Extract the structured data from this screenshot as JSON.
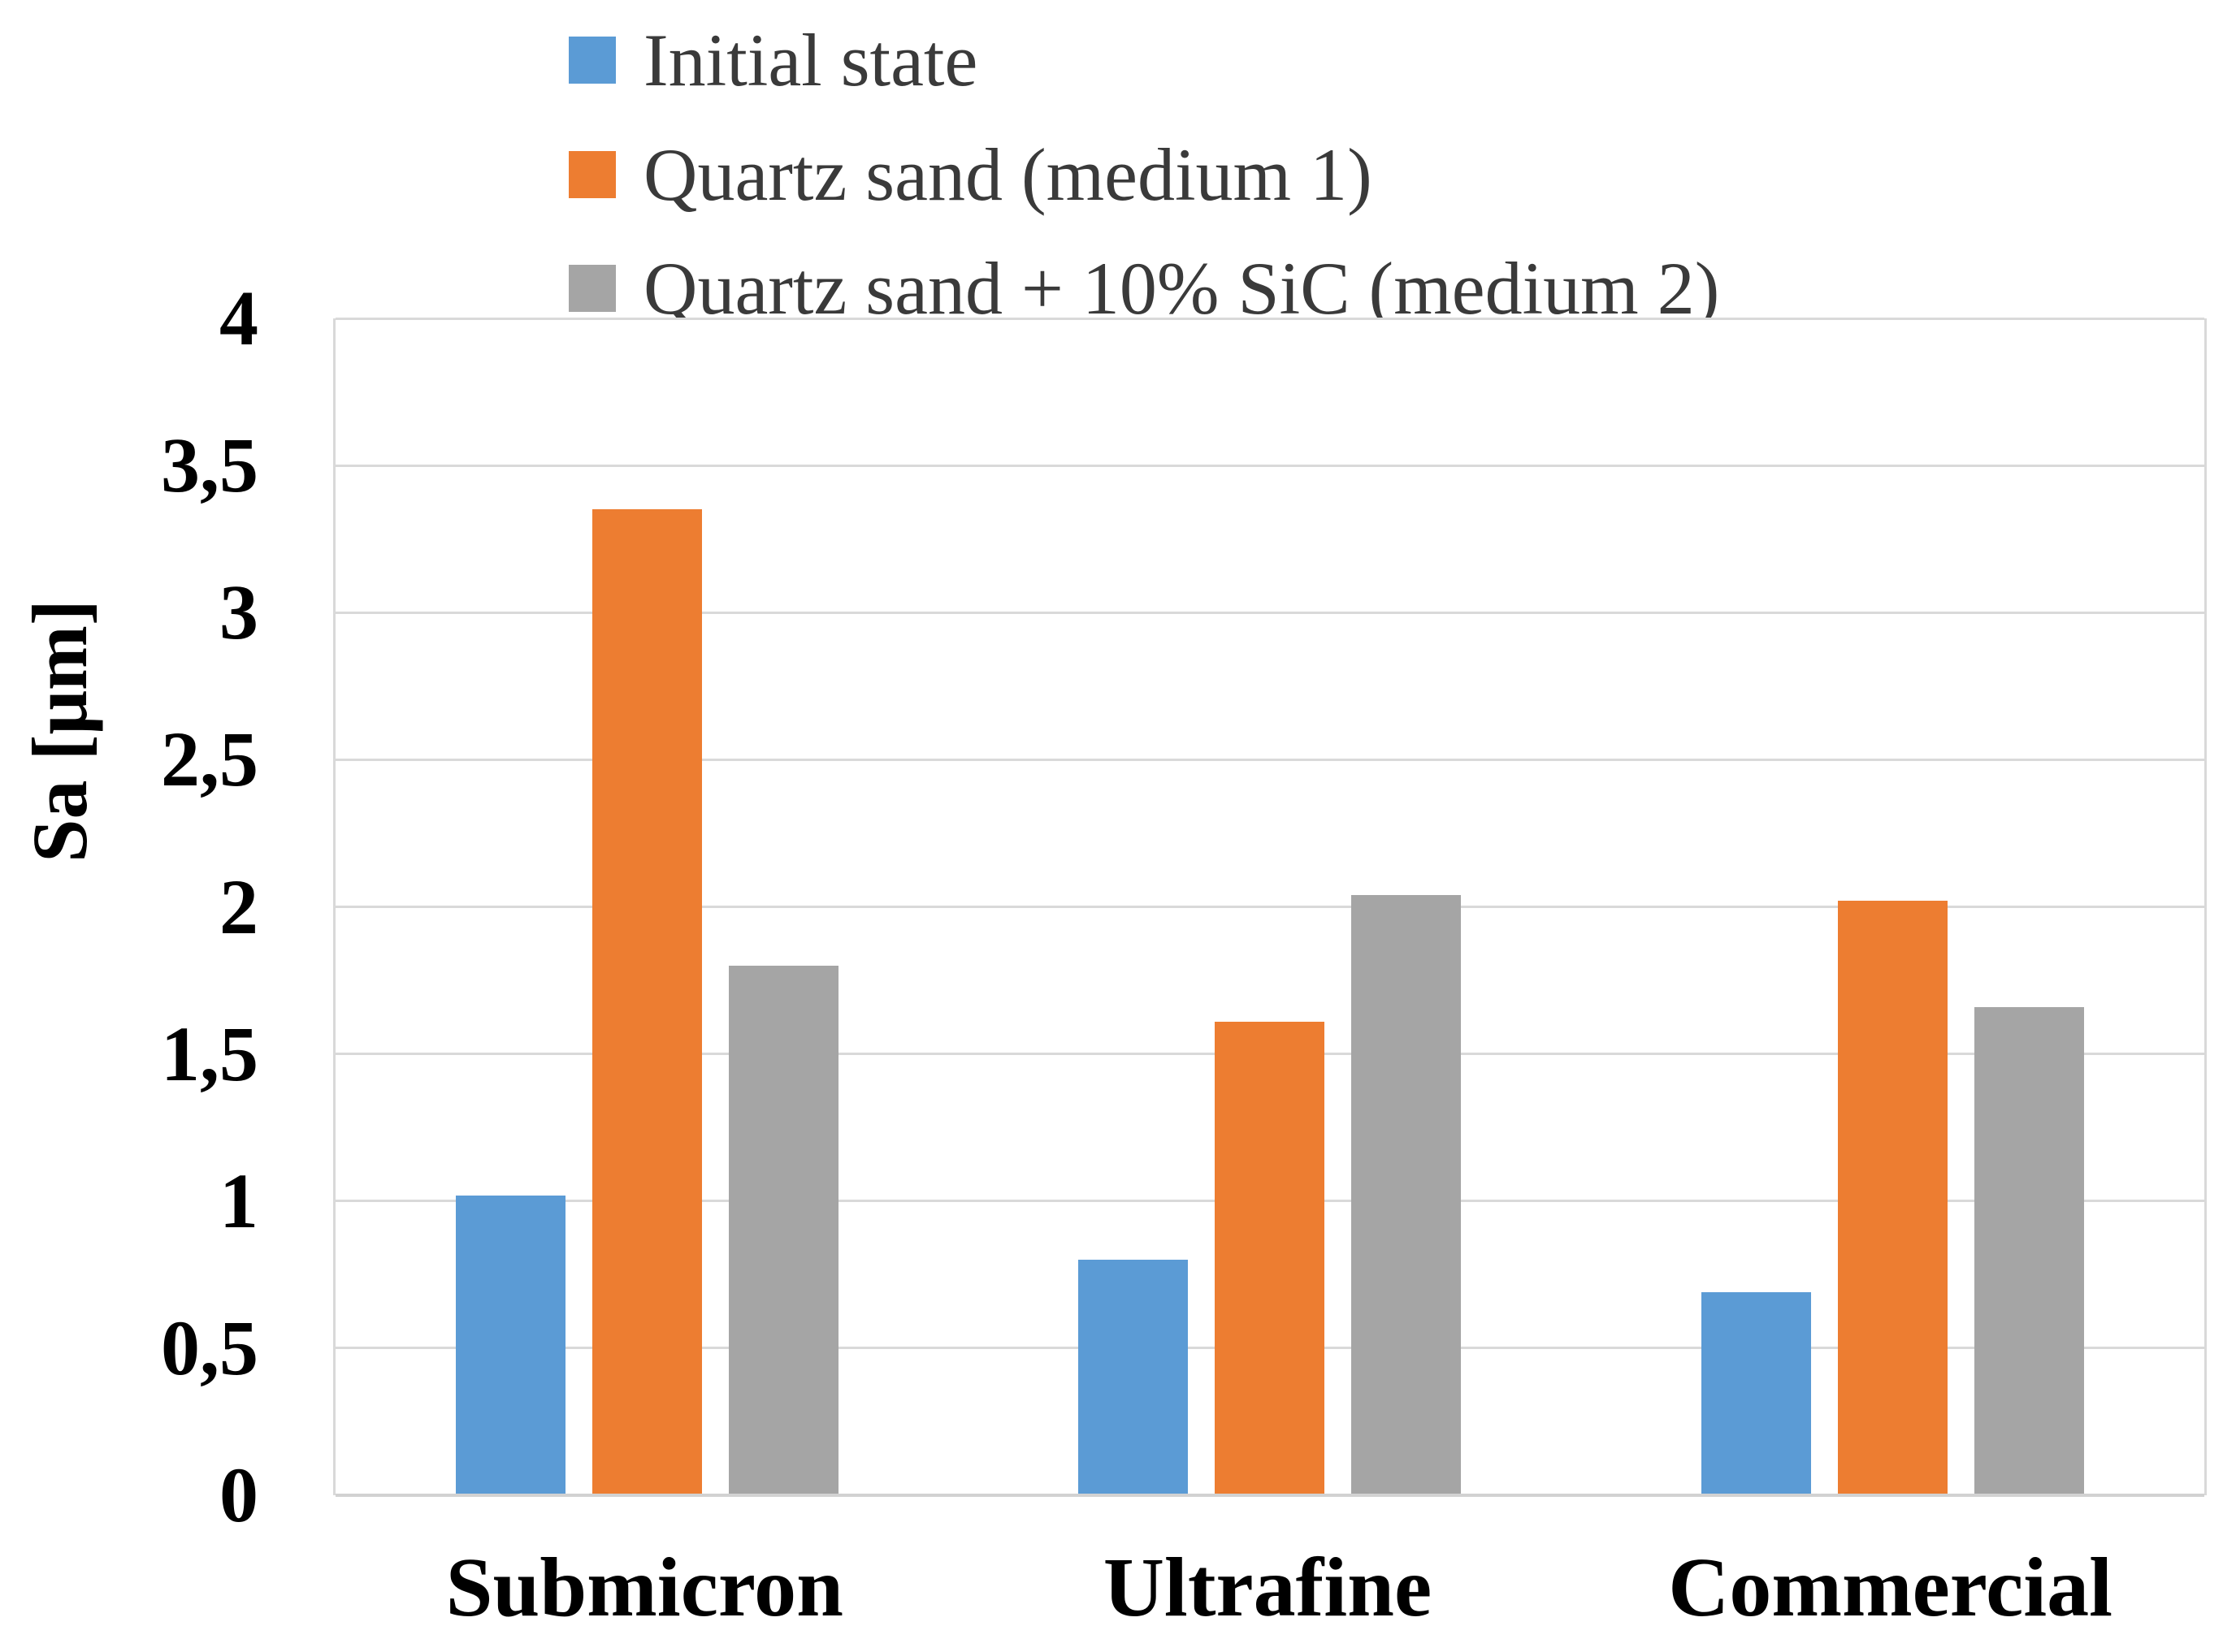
{
  "figure": {
    "background": "#ffffff"
  },
  "chart_data": {
    "type": "bar",
    "title": "",
    "categories": [
      "Submicron",
      "Ultrafine",
      "Commercial"
    ],
    "series": [
      {
        "name": "Initial state",
        "color": "#5B9BD5",
        "values": [
          1.02,
          0.8,
          0.69
        ]
      },
      {
        "name": "Quartz sand (medium 1)",
        "color": "#ED7D31",
        "values": [
          3.35,
          1.61,
          2.02
        ]
      },
      {
        "name": "Quartz sand + 10% SiC (medium 2)",
        "color": "#A5A5A5",
        "values": [
          1.8,
          2.04,
          1.66
        ]
      }
    ],
    "xlabel": "",
    "ylabel": "Sa [μm]",
    "ylim": [
      0,
      4
    ],
    "ytick_step": 0.5,
    "ytick_labels": [
      "0",
      "0,5",
      "1",
      "1,5",
      "2",
      "2,5",
      "3",
      "3,5",
      "4"
    ],
    "decimal_separator": ",",
    "grid": true,
    "legend_position": "top-left",
    "gridline_color": "#d9d9d9",
    "axis_line_color": "#d2d2d2",
    "tick_label_color": "#000000",
    "legend_text_color": "#3a3a3a",
    "plot_background": "#ffffff"
  }
}
